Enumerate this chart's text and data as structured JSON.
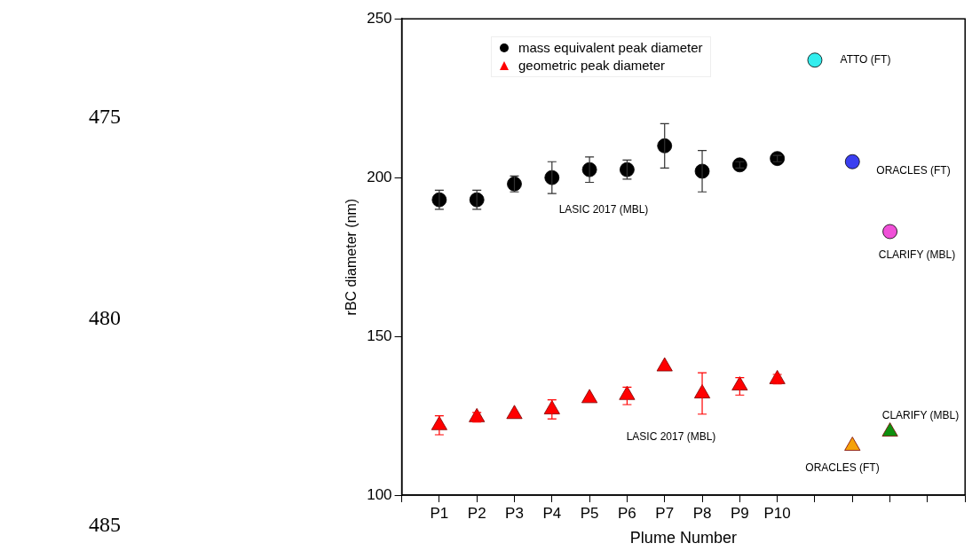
{
  "chart_data": {
    "type": "scatter",
    "xlabel": "Plume Number",
    "ylabel": "rBC diameter (nm)",
    "categories": [
      null,
      "P1",
      "P2",
      "P3",
      "P4",
      "P5",
      "P6",
      "P7",
      "P8",
      "P9",
      "P10",
      null,
      null,
      null,
      null,
      null
    ],
    "ylim": [
      100,
      250
    ],
    "yticks": [
      100,
      150,
      200,
      250
    ],
    "grid": false,
    "legend": "top left",
    "series": [
      {
        "name": "mass equivalent peak diameter",
        "color": "#000000",
        "marker": "circle",
        "values": [
          null,
          193,
          193,
          198,
          200,
          202.5,
          202.5,
          210,
          202,
          204,
          206,
          null,
          null,
          null,
          null,
          null
        ],
        "errors": [
          null,
          3,
          3,
          2.5,
          5,
          4,
          3,
          7,
          [
            195.5,
            208.5
          ],
          1,
          1,
          null,
          null,
          null,
          null,
          null
        ]
      },
      {
        "name": "geometric peak diameter",
        "color": "#ff0000",
        "marker": "triangle",
        "values": [
          null,
          122,
          124.5,
          125.5,
          127,
          130.5,
          131.5,
          140.5,
          132,
          134.5,
          136.5,
          null,
          null,
          null,
          null,
          null
        ],
        "errors": [
          null,
          3,
          [
            123,
            126
          ],
          null,
          3,
          null,
          [
            128.5,
            134
          ],
          null,
          [
            125.5,
            138.5
          ],
          [
            131.5,
            137
          ],
          [
            135,
            138
          ],
          null,
          null,
          null,
          null,
          null
        ]
      },
      {
        "color": "#33eeee",
        "marker": "circle",
        "values": [
          null,
          null,
          null,
          null,
          null,
          null,
          null,
          null,
          null,
          null,
          null,
          237,
          null,
          null,
          null,
          null
        ]
      },
      {
        "color": "#3a3ff0",
        "marker": "circle",
        "values": [
          null,
          null,
          null,
          null,
          null,
          null,
          null,
          null,
          null,
          null,
          null,
          null,
          205,
          null,
          null,
          null
        ]
      },
      {
        "color": "#f050d8",
        "marker": "circle",
        "values": [
          null,
          null,
          null,
          null,
          null,
          null,
          null,
          null,
          null,
          null,
          null,
          null,
          null,
          183,
          null,
          null
        ]
      },
      {
        "color": "#f5a10a",
        "marker": "triangle",
        "values": [
          null,
          null,
          null,
          null,
          null,
          null,
          null,
          null,
          null,
          null,
          null,
          null,
          115.5,
          null,
          null,
          null
        ]
      },
      {
        "color": "#0f8f0f",
        "marker": "triangle",
        "values": [
          null,
          null,
          null,
          null,
          null,
          null,
          null,
          null,
          null,
          null,
          null,
          null,
          null,
          120,
          null,
          null
        ]
      }
    ],
    "annotations": [
      "LASIC 2017 (MBL)",
      "LASIC 2017 (MBL)",
      "ATTO (FT)",
      "ORACLES (FT)",
      "CLARIFY (MBL)",
      "CLARIFY (MBL)",
      "ORACLES (FT)",
      "475",
      "480",
      "485"
    ]
  }
}
